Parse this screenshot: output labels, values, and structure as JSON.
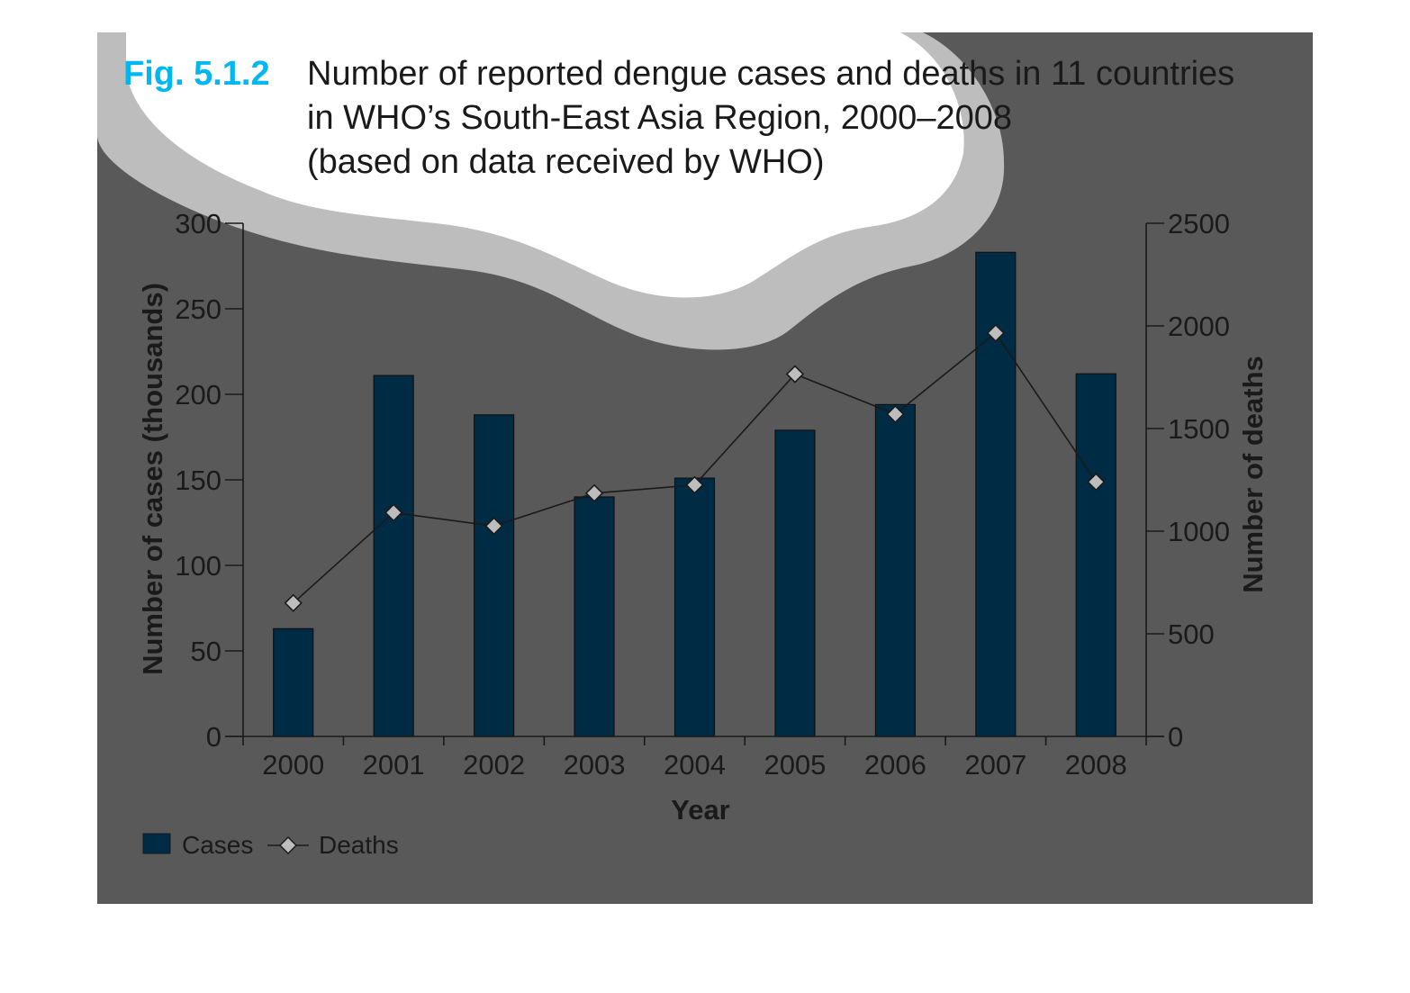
{
  "figure": {
    "label": "Fig. 5.1.2",
    "title_lines": [
      "Number of reported dengue cases and deaths in 11 countries",
      "in WHO’s South-East Asia Region, 2000–2008",
      "(based on data received by WHO)"
    ]
  },
  "chart_data": {
    "type": "bar",
    "categories": [
      "2000",
      "2001",
      "2002",
      "2003",
      "2004",
      "2005",
      "2006",
      "2007",
      "2008"
    ],
    "series": [
      {
        "name": "Cases",
        "type": "bar",
        "axis": "left",
        "values": [
          63,
          211,
          188,
          140,
          151,
          179,
          194,
          283,
          212
        ]
      },
      {
        "name": "Deaths",
        "type": "line",
        "axis": "right",
        "marker": "diamond",
        "values": [
          650,
          1090,
          1025,
          1185,
          1225,
          1765,
          1570,
          1965,
          1240
        ]
      }
    ],
    "xlabel": "Year",
    "ylabel": "Number of cases (thousands)",
    "y2label": "Number of deaths",
    "ylim": [
      0,
      300
    ],
    "y2lim": [
      0,
      2500
    ],
    "yticks": [
      0,
      50,
      100,
      150,
      200,
      250,
      300
    ],
    "y2ticks": [
      0,
      500,
      1000,
      1500,
      2000,
      2500
    ],
    "grid": false,
    "legend": "bottom-left"
  },
  "colors": {
    "background": "#595959",
    "cloud_outer": "#bdbdbd",
    "cloud_inner": "#ffffff",
    "bar": "#002b45",
    "line": "#1a1a1a",
    "marker_fill": "#bdbdbd",
    "label_accent": "#00b7f0"
  }
}
